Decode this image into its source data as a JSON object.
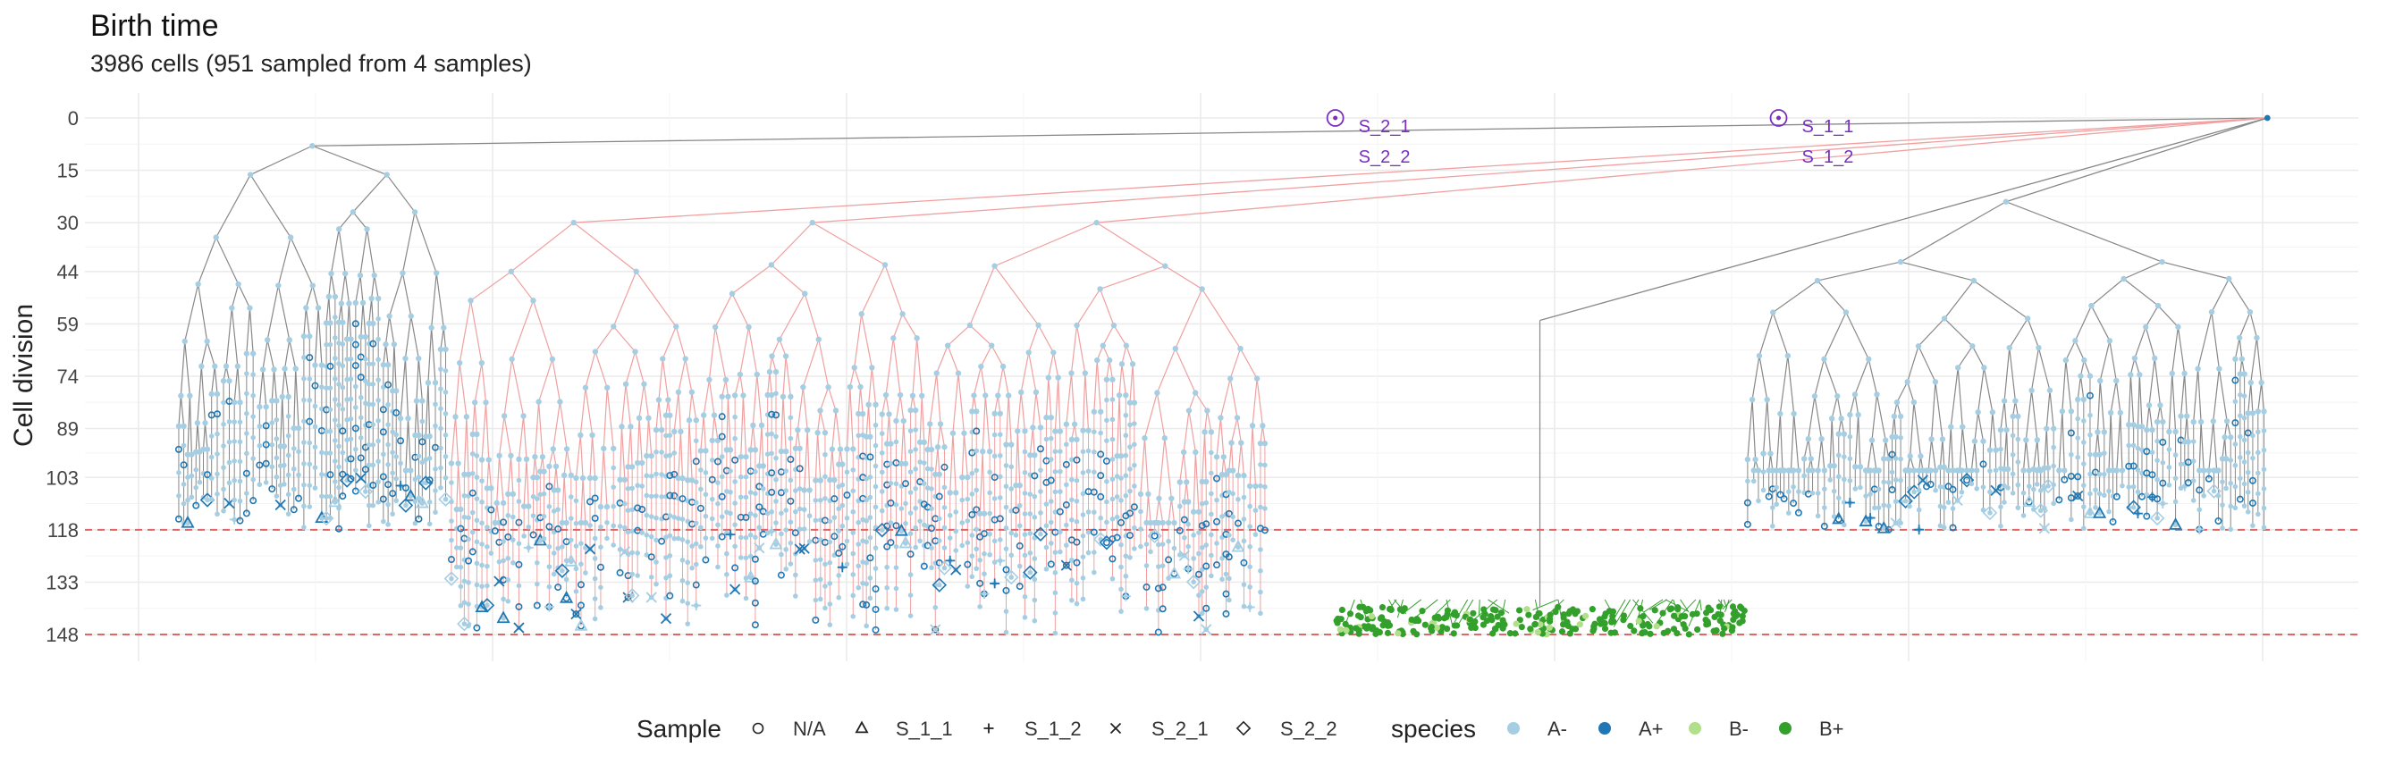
{
  "chart_data": {
    "type": "scatter",
    "title": "Birth time",
    "subtitle": "3986 cells (951 sampled from 4 samples)",
    "xlabel": "",
    "ylabel": "Cell division",
    "y_reversed": true,
    "ylim": [
      0,
      150
    ],
    "y_ticks": [
      0,
      15,
      30,
      44,
      59,
      74,
      89,
      103,
      118,
      133,
      148
    ],
    "x_ticks_labeled": false,
    "grid": true,
    "reference_lines": [
      {
        "y": 118,
        "style": "dashed",
        "color": "#e06666"
      },
      {
        "y": 148,
        "style": "dashed",
        "color": "#e06666"
      }
    ],
    "root_annotations": [
      {
        "x": 0.55,
        "y": 0,
        "labels": [
          "S_2_1",
          "S_2_2"
        ]
      },
      {
        "x": 0.745,
        "y": 0,
        "labels": [
          "S_1_1",
          "S_1_2"
        ]
      }
    ],
    "legend": {
      "placement": "bottom",
      "sample": {
        "title": "Sample",
        "items": [
          {
            "label": "N/A",
            "shape": "circle"
          },
          {
            "label": "S_1_1",
            "shape": "triangle"
          },
          {
            "label": "S_1_2",
            "shape": "plus"
          },
          {
            "label": "S_2_1",
            "shape": "cross"
          },
          {
            "label": "S_2_2",
            "shape": "diamond"
          }
        ]
      },
      "species": {
        "title": "species",
        "items": [
          {
            "label": "A-",
            "color": "#a6cee3"
          },
          {
            "label": "A+",
            "color": "#1f78b4"
          },
          {
            "label": "B-",
            "color": "#b2df8a"
          },
          {
            "label": "B+",
            "color": "#33a02c"
          }
        ]
      }
    },
    "edge_colors": {
      "tree": "#888888",
      "sampled_path": "#f0a0a0",
      "species_b": "#33a02c"
    },
    "clades": [
      {
        "x_range": [
          0.04,
          0.16
        ],
        "tip_y": [
          103,
          118
        ],
        "root_y": 8,
        "species": "A-"
      },
      {
        "x_range": [
          0.16,
          0.27
        ],
        "tip_y": [
          118,
          148
        ],
        "root_y": 30,
        "species": "A-"
      },
      {
        "x_range": [
          0.27,
          0.37
        ],
        "tip_y": [
          118,
          148
        ],
        "root_y": 30,
        "species": "A-"
      },
      {
        "x_range": [
          0.37,
          0.52
        ],
        "tip_y": [
          118,
          148
        ],
        "root_y": 30,
        "species": "A-"
      },
      {
        "x_range": [
          0.55,
          0.73
        ],
        "tip_y": [
          140,
          148
        ],
        "root_y": 58,
        "species": "B+"
      },
      {
        "x_range": [
          0.73,
          0.96
        ],
        "tip_y": [
          103,
          118
        ],
        "root_y": 24,
        "species": "A-"
      }
    ]
  }
}
